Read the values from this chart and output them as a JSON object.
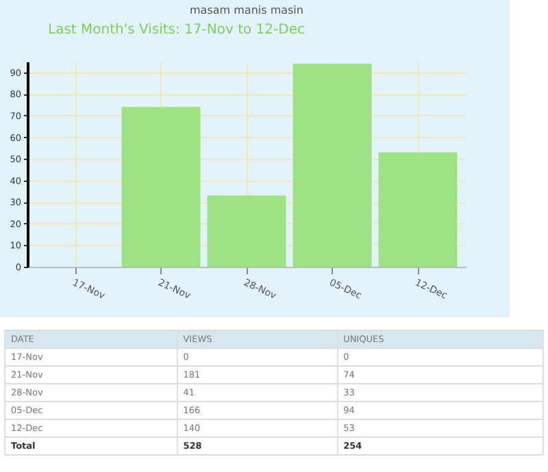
{
  "chart_data": [
    {
      "type": "bar",
      "title": "masam manis masin",
      "categories": [
        "17-Nov",
        "21-Nov",
        "28-Nov",
        "05-Dec",
        "12-Dec"
      ],
      "series": [
        {
          "name": "Last Month's Visits: 17-Nov to 12-Dec",
          "color": "#9be07f",
          "values": [
            0,
            74,
            33,
            94,
            53
          ]
        }
      ],
      "ylim": [
        0,
        95
      ],
      "yticks": [
        0,
        10,
        20,
        30,
        40,
        50,
        60,
        70,
        80,
        90
      ],
      "grid": true,
      "legend": "top left"
    },
    {
      "type": "other",
      "annotations": [
        "DATE",
        "VIEWS",
        "UNIQUES",
        "17-Nov",
        "0",
        "0",
        "21-Nov",
        "181",
        "74",
        "28-Nov",
        "41",
        "33",
        "05-Dec",
        "166",
        "94",
        "12-Dec",
        "140",
        "53",
        "Total",
        "528",
        "254"
      ]
    }
  ]
}
